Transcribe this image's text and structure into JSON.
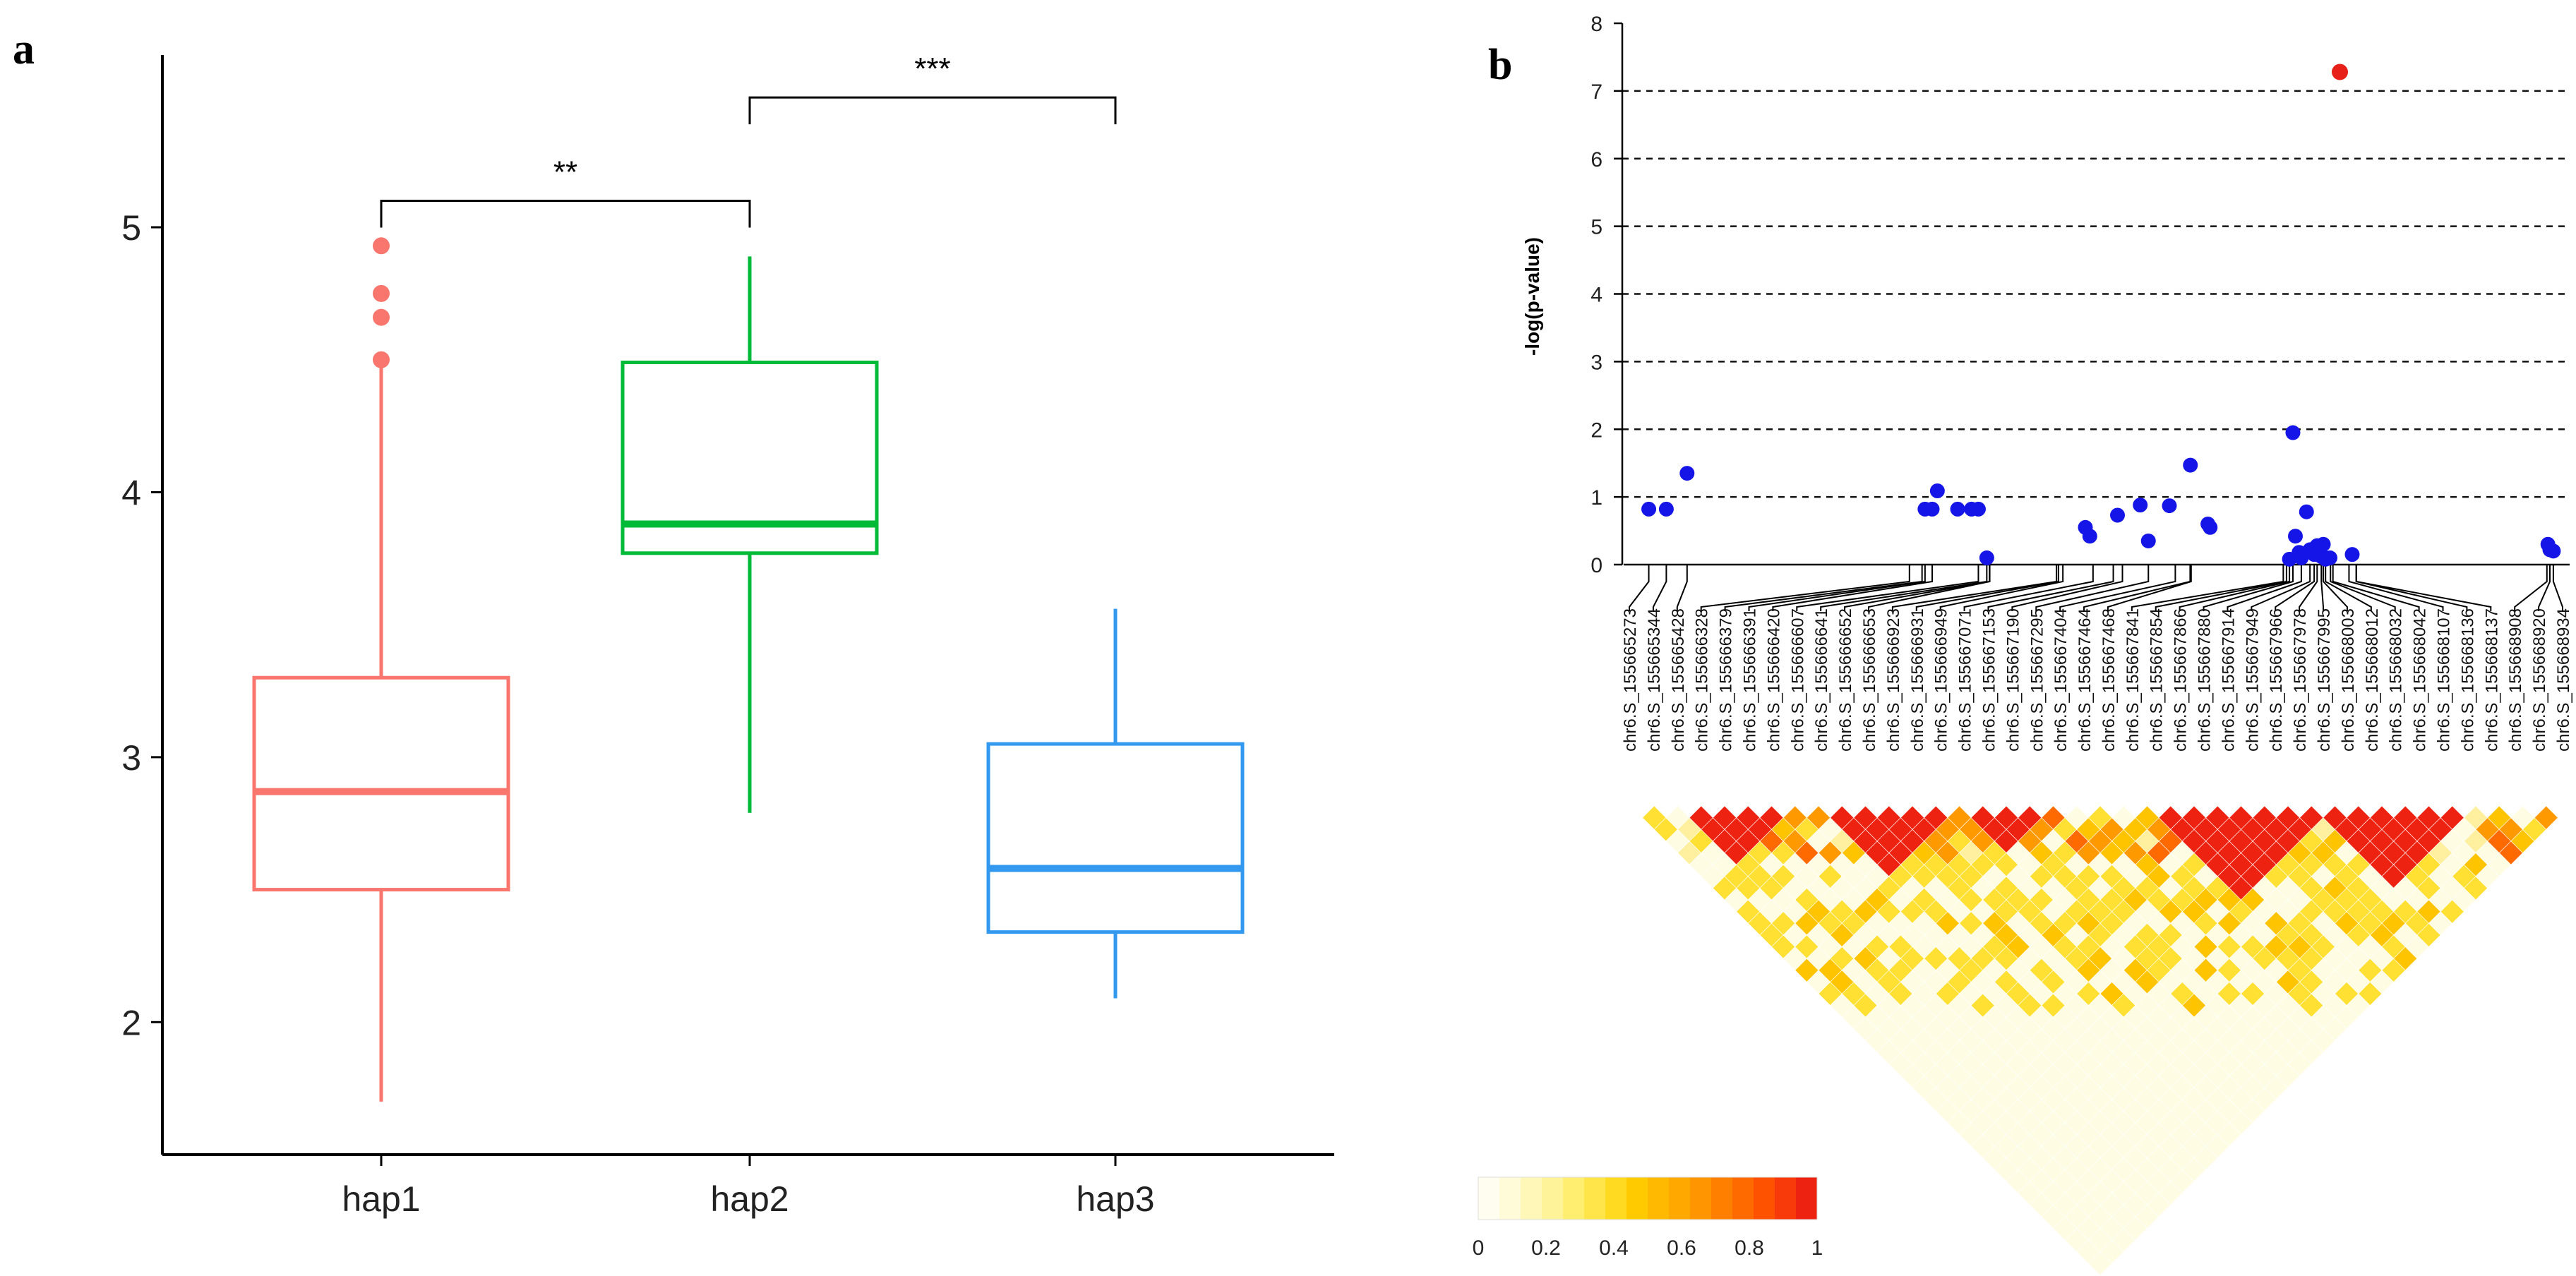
{
  "chart_data": [
    {
      "panel": "a",
      "type": "box",
      "categories": [
        "hap1",
        "hap2",
        "hap3"
      ],
      "colors": [
        "#F8766D",
        "#00BA38",
        "#3399EE"
      ],
      "ylim": [
        1.5,
        5.65
      ],
      "yticks": [
        "2",
        "3",
        "4",
        "5"
      ],
      "boxes": [
        {
          "name": "hap1",
          "min": 1.7,
          "q1": 2.5,
          "median": 2.87,
          "q3": 3.3,
          "max": 4.5,
          "outliers": [
            4.5,
            4.66,
            4.75,
            4.93
          ]
        },
        {
          "name": "hap2",
          "min": 2.79,
          "q1": 3.77,
          "median": 3.88,
          "q3": 4.49,
          "max": 4.89,
          "outliers": []
        },
        {
          "name": "hap3",
          "min": 2.09,
          "q1": 2.34,
          "median": 2.58,
          "q3": 3.05,
          "max": 3.56,
          "outliers": []
        }
      ],
      "significance": [
        {
          "from": "hap1",
          "to": "hap2",
          "label": "**",
          "level": 5.1
        },
        {
          "from": "hap2",
          "to": "hap3",
          "label": "***",
          "level": 5.49
        }
      ],
      "xlabel": "",
      "ylabel": ""
    },
    {
      "panel": "b",
      "type": "scatter",
      "ylabel": "-log(p-value)",
      "ylim": [
        0,
        8
      ],
      "yticks": [
        "0",
        "1",
        "2",
        "3",
        "4",
        "5",
        "6",
        "7",
        "8"
      ],
      "gridlines": [
        1,
        2,
        3,
        4,
        5,
        6,
        7
      ],
      "point_color": "#1515E8",
      "highlight_color": "#E8201A",
      "x_range": [
        155665200,
        155669000
      ],
      "points": [
        [
          155665273,
          0.82
        ],
        [
          155665344,
          0.82
        ],
        [
          155665428,
          1.35
        ],
        [
          155666391,
          0.82
        ],
        [
          155666420,
          0.82
        ],
        [
          155666441,
          1.09
        ],
        [
          155666523,
          0.82
        ],
        [
          155666579,
          0.82
        ],
        [
          155666607,
          0.82
        ],
        [
          155666641,
          0.1
        ],
        [
          155667040,
          0.55
        ],
        [
          155667058,
          0.42
        ],
        [
          155667170,
          0.73
        ],
        [
          155667262,
          0.88
        ],
        [
          155667295,
          0.35
        ],
        [
          155667380,
          0.87
        ],
        [
          155667465,
          1.47
        ],
        [
          155667536,
          0.6
        ],
        [
          155667545,
          0.55
        ],
        [
          155667866,
          0.08
        ],
        [
          155667880,
          1.95
        ],
        [
          155667890,
          0.42
        ],
        [
          155667905,
          0.18
        ],
        [
          155667914,
          0.1
        ],
        [
          155667935,
          0.78
        ],
        [
          155667949,
          0.22
        ],
        [
          155667966,
          0.15
        ],
        [
          155667978,
          0.28
        ],
        [
          155667990,
          0.22
        ],
        [
          155667995,
          0.12
        ],
        [
          155668003,
          0.3
        ],
        [
          155668012,
          0.08
        ],
        [
          155668030,
          0.1
        ],
        [
          155668120,
          0.15
        ],
        [
          155668912,
          0.3
        ],
        [
          155668920,
          0.22
        ],
        [
          155668934,
          0.2
        ]
      ],
      "highlight_point": [
        155668070,
        7.28
      ],
      "snp_labels": [
        "chr6.S_155665273",
        "chr6.S_155665344",
        "chr6.S_155665428",
        "chr6.S_155666328",
        "chr6.S_155666379",
        "chr6.S_155666391",
        "chr6.S_155666420",
        "chr6.S_155666607",
        "chr6.S_155666641",
        "chr6.S_155666652",
        "chr6.S_155666653",
        "chr6.S_155666923",
        "chr6.S_155666931",
        "chr6.S_155666949",
        "chr6.S_155667071",
        "chr6.S_155667153",
        "chr6.S_155667190",
        "chr6.S_155667295",
        "chr6.S_155667404",
        "chr6.S_155667464",
        "chr6.S_155667468",
        "chr6.S_155667841",
        "chr6.S_155667854",
        "chr6.S_155667866",
        "chr6.S_155667880",
        "chr6.S_155667914",
        "chr6.S_155667949",
        "chr6.S_155667966",
        "chr6.S_155667978",
        "chr6.S_155667995",
        "chr6.S_155668003",
        "chr6.S_155668012",
        "chr6.S_155668032",
        "chr6.S_155668042",
        "chr6.S_155668107",
        "chr6.S_155668136",
        "chr6.S_155668137",
        "chr6.S_155668908",
        "chr6.S_155668920",
        "chr6.S_155668934"
      ],
      "ld_legend": {
        "min": "0",
        "max": "1",
        "ticks": [
          "0",
          "0.2",
          "0.4",
          "0.6",
          "0.8",
          "1"
        ]
      }
    }
  ]
}
